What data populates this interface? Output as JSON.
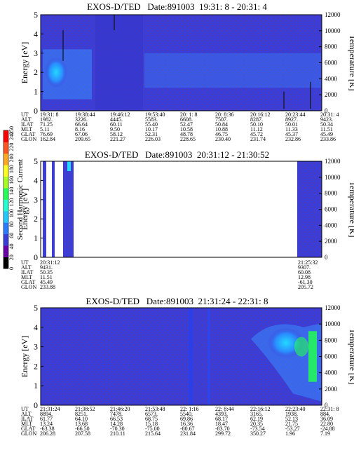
{
  "colors": {
    "background": "#3a3dd6",
    "white_gap": "#ffffff",
    "hot_blue": "#3b8dff",
    "cyan": "#22d8ff",
    "green": "#22ff55",
    "noise_red": "#b0302a"
  },
  "colorbar": {
    "label": "Second Harmonic Current",
    "ticks": [
      "0",
      "20",
      "40",
      "60",
      "80",
      "100",
      "120",
      "140",
      "160",
      "180",
      "200",
      "220",
      "240",
      "250"
    ],
    "range": [
      0,
      250
    ]
  },
  "chart_data": [
    {
      "type": "heatmap",
      "title": "EXOS-D/TED   Date:891003  19:31: 8 - 20:31: 4",
      "ylabel": "Energy [eV]",
      "y2label": "Temperature [K]",
      "ylim": [
        0,
        5
      ],
      "y_ticks": [
        "0",
        "1",
        "2",
        "3",
        "4",
        "5"
      ],
      "y2lim": [
        0,
        12000
      ],
      "y2_ticks": [
        "0",
        "2000",
        "4000",
        "6000",
        "8000",
        "10000",
        "12000"
      ],
      "row_labels": [
        "UT",
        "ALT",
        "ILAT",
        "MLT",
        "GLAT",
        "GLON"
      ],
      "columns": [
        [
          "19:31: 8",
          "1982.",
          "71.25",
          "5.11",
          "76.69",
          "162.84"
        ],
        [
          "19:38:44",
          "3226.",
          "66.64",
          "8.16",
          "67.06",
          "209.65"
        ],
        [
          "19:46:12",
          "4445.",
          "60.11",
          "9.50",
          "58.12",
          "221.27"
        ],
        [
          "19:53:40",
          "5583.",
          "55.40",
          "10.17",
          "52.31",
          "226.03"
        ],
        [
          "20: 1: 8",
          "6608.",
          "52.47",
          "10.58",
          "48.78",
          "228.65"
        ],
        [
          "20: 8:36",
          "7507.",
          "50.84",
          "10.88",
          "46.75",
          "230.40"
        ],
        [
          "20:16:12",
          "8287.",
          "50.10",
          "11.12",
          "45.72",
          "231.74"
        ],
        [
          "20:23:44",
          "8927.",
          "50.01",
          "11.33",
          "45.37",
          "232.86"
        ],
        [
          "20:31: 4",
          "9423.",
          "50.34",
          "11.51",
          "45.49",
          "233.86"
        ]
      ]
    },
    {
      "type": "heatmap",
      "title": "EXOS-D/TED   Date:891003  20:31:12 - 21:30:52",
      "ylabel": "Energy [eV]",
      "y2label": "Temperature [K]",
      "ylim": [
        0,
        5
      ],
      "y_ticks": [
        "0",
        "1",
        "2",
        "3",
        "4",
        "5"
      ],
      "y2lim": [
        0,
        12000
      ],
      "y2_ticks": [
        "0",
        "2000",
        "4000",
        "6000",
        "8000",
        "10000",
        "12000"
      ],
      "row_labels": [
        "UT",
        "ALT",
        "ILAT",
        "MLT",
        "GLAT",
        "GLON"
      ],
      "columns": [
        [
          "20:31:12",
          "9431.",
          "50.35",
          "11.51",
          "45.49",
          "233.88"
        ],
        [
          "21:25:32",
          "9307.",
          "60.08",
          "12.98",
          "-61.30",
          "205.72"
        ]
      ]
    },
    {
      "type": "heatmap",
      "title": "EXOS-D/TED   Date:891003  21:31:24 - 22:31: 8",
      "ylabel": "Energy [eV]",
      "y2label": "Temperature [K]",
      "ylim": [
        0,
        5
      ],
      "y_ticks": [
        "0",
        "1",
        "2",
        "3",
        "4",
        "5"
      ],
      "y2lim": [
        0,
        12000
      ],
      "y2_ticks": [
        "0",
        "2000",
        "4000",
        "6000",
        "8000",
        "10000",
        "12000"
      ],
      "row_labels": [
        "UT",
        "ALT",
        "ILAT",
        "MLT",
        "GLAT",
        "GLON"
      ],
      "columns": [
        [
          "21:31:24",
          "8894.",
          "61.77",
          "13.24",
          "-63.38",
          "206.28"
        ],
        [
          "21:38:52",
          "8251.",
          "64.10",
          "13.68",
          "-66.50",
          "207.58"
        ],
        [
          "21:46:20",
          "7478.",
          "66.53",
          "14.28",
          "-70.30",
          "210.11"
        ],
        [
          "21:53:48",
          "6573.",
          "68.75",
          "15.18",
          "-75.00",
          "215.64"
        ],
        [
          "22: 1:16",
          "5540.",
          "69.86",
          "16.36",
          "-80.67",
          "231.84"
        ],
        [
          "22: 8:44",
          "4393.",
          "68.17",
          "18.47",
          "-83.70",
          "299.72"
        ],
        [
          "22:16:12",
          "3165.",
          "62.19",
          "20.35",
          "-73.54",
          "350.27"
        ],
        [
          "22:23:40",
          "1938.",
          "52.13",
          "21.75",
          "-53.27",
          "1.96"
        ],
        [
          "22:31: 8",
          "884.",
          "36.09",
          "22.80",
          "-24.88",
          "7.19"
        ]
      ]
    }
  ]
}
